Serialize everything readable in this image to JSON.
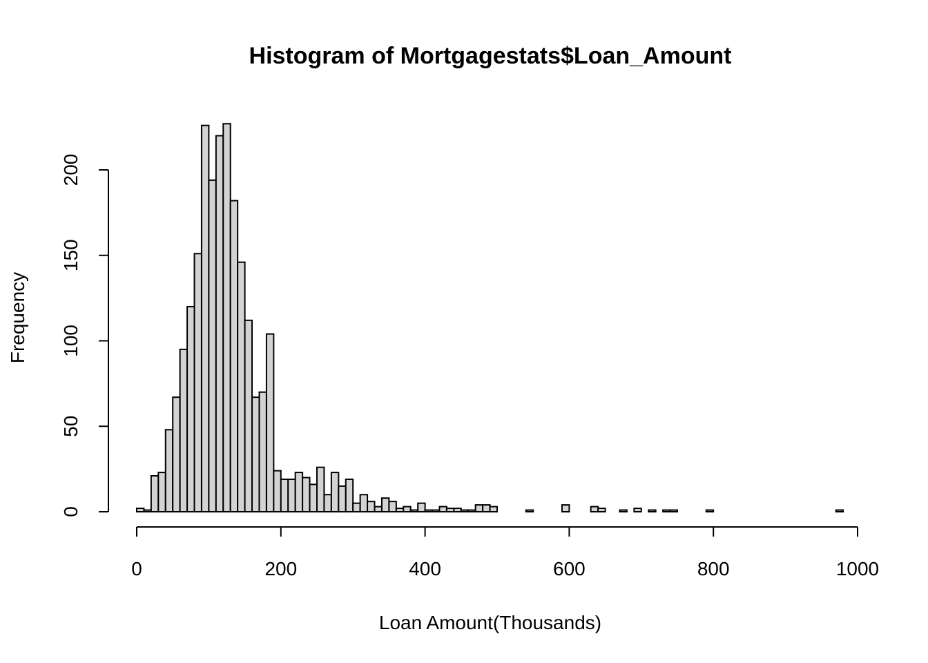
{
  "chart_data": {
    "type": "bar",
    "title": "Histogram of Mortgagestats$Loan_Amount",
    "xlabel": "Loan Amount(Thousands)",
    "ylabel": "Frequency",
    "xlim": [
      0,
      1000
    ],
    "ylim": [
      0,
      230
    ],
    "bin_width": 10,
    "x_ticks": [
      0,
      200,
      400,
      600,
      800,
      1000
    ],
    "y_ticks": [
      0,
      50,
      100,
      150,
      200
    ],
    "grid": false,
    "bar_color": "#d3d3d3",
    "edge_color": "#000000",
    "bins_start": [
      0,
      10,
      20,
      30,
      40,
      50,
      60,
      70,
      80,
      90,
      100,
      110,
      120,
      130,
      140,
      150,
      160,
      170,
      180,
      190,
      200,
      210,
      220,
      230,
      240,
      250,
      260,
      270,
      280,
      290,
      300,
      310,
      320,
      330,
      340,
      350,
      360,
      370,
      380,
      390,
      400,
      410,
      420,
      430,
      440,
      450,
      460,
      470,
      480,
      490,
      540,
      590,
      630,
      640,
      670,
      690,
      710,
      730,
      740,
      790,
      970
    ],
    "counts": [
      2,
      1,
      21,
      23,
      48,
      67,
      95,
      120,
      151,
      226,
      194,
      220,
      227,
      182,
      146,
      112,
      67,
      70,
      104,
      24,
      19,
      19,
      23,
      20,
      16,
      26,
      10,
      23,
      15,
      19,
      5,
      10,
      6,
      3,
      8,
      6,
      2,
      3,
      1,
      5,
      1,
      1,
      3,
      2,
      2,
      1,
      1,
      4,
      4,
      3,
      1,
      4,
      3,
      2,
      1,
      2,
      1,
      1,
      1,
      1,
      1
    ]
  }
}
